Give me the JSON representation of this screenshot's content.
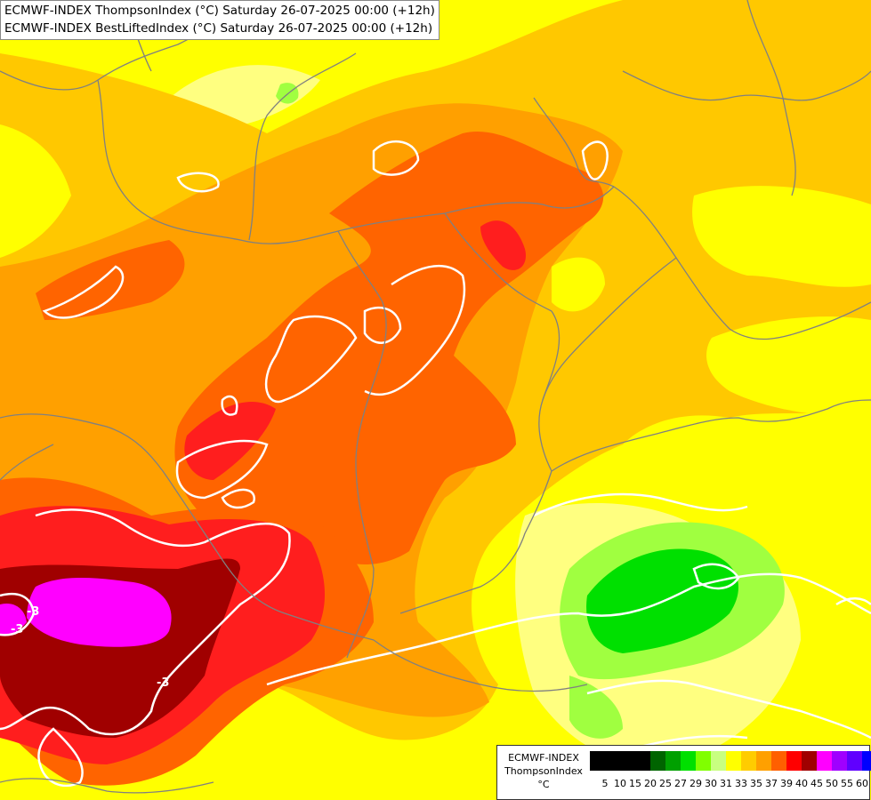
{
  "titles": {
    "line1": "ECMWF-INDEX ThompsonIndex (°C) Saturday 26-07-2025 00:00 (+12h)",
    "line2": "ECMWF-INDEX BestLiftedIndex (°C) Saturday 26-07-2025 00:00 (+12h)"
  },
  "legend": {
    "line1": "ECMWF-INDEX",
    "line2": "ThompsonIndex",
    "unit": "°C",
    "ticks": [
      "5",
      "10",
      "15",
      "20",
      "25",
      "27",
      "29",
      "30",
      "31",
      "33",
      "35",
      "37",
      "39",
      "40",
      "45",
      "50",
      "55",
      "60"
    ],
    "colors": [
      "#000000",
      "#000000",
      "#000000",
      "#000000",
      "#006400",
      "#00a000",
      "#00e000",
      "#80ff00",
      "#c8ff80",
      "#ffff00",
      "#ffcc00",
      "#ffa000",
      "#ff6000",
      "#ff0000",
      "#a00000",
      "#ff00ff",
      "#a000ff",
      "#6000ff",
      "#0000ff"
    ]
  },
  "map_colors": {
    "yellow": "#ffff00",
    "light_yellow": "#ffff80",
    "orange_light": "#ffc800",
    "orange": "#ffa000",
    "dark_orange": "#ff6400",
    "red": "#ff1e1e",
    "dark_red": "#a00000",
    "magenta": "#ff00ff",
    "light_green": "#a0ff40",
    "green": "#00e000",
    "contour": "#ffffff",
    "border": "#808080"
  },
  "contour_labels": [
    "-3",
    "-3",
    "-3"
  ]
}
